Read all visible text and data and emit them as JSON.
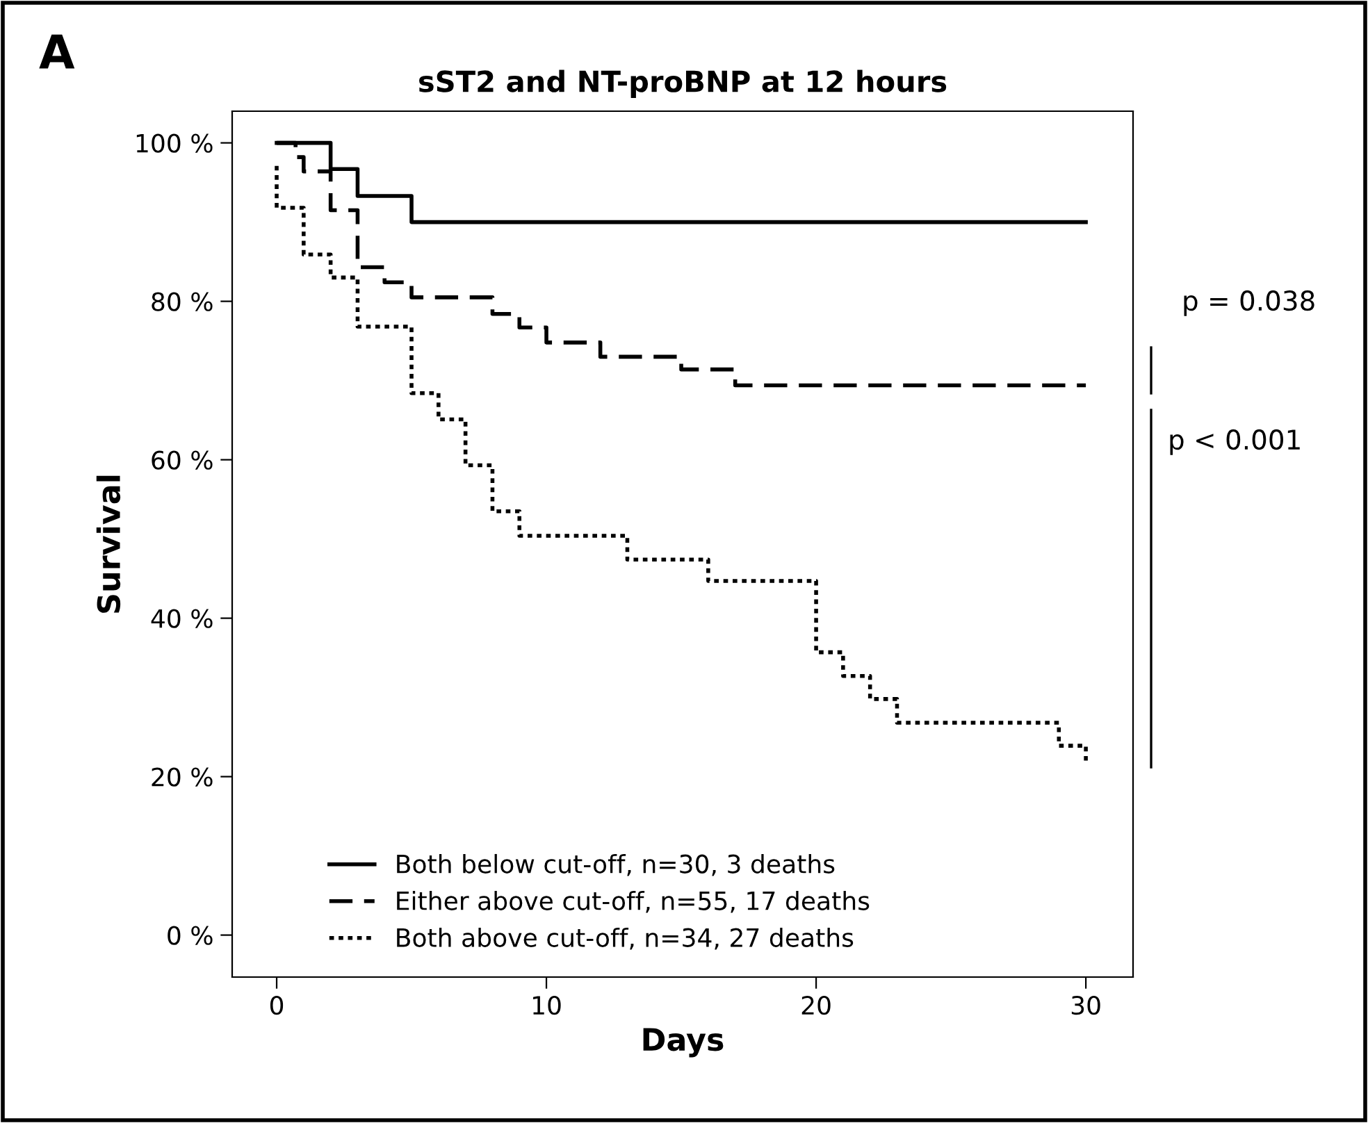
{
  "chart_data": {
    "type": "step",
    "title": "sST2 and NT-proBNP at 12 hours",
    "xlabel": "Days",
    "ylabel": "Survival",
    "series": [
      {
        "name": "Both below cut-off, n=30, 3 deaths",
        "color": "#000000",
        "line_style": "solid",
        "x": [
          0,
          2,
          3,
          5,
          30
        ],
        "values": [
          100,
          96.7,
          93.3,
          90,
          90
        ]
      },
      {
        "name": "Either above cut-off, n=55, 17 deaths",
        "color": "#000000",
        "line_style": "dashed",
        "x": [
          0,
          0.7,
          1,
          2,
          3,
          4,
          5,
          8,
          9,
          10,
          12,
          15,
          17,
          30
        ],
        "values": [
          100,
          98.2,
          96.4,
          91.5,
          84.3,
          82.4,
          80.5,
          78.4,
          76.7,
          74.8,
          73.0,
          71.4,
          69.4,
          69.4
        ]
      },
      {
        "name": "Both above cut-off, n=34, 27 deaths",
        "color": "#000000",
        "line_style": "dotted",
        "x": [
          0,
          0,
          1,
          2,
          3,
          5,
          6,
          7,
          8,
          9,
          13,
          16,
          20,
          21,
          22,
          23,
          29,
          30
        ],
        "values": [
          97.1,
          91.8,
          85.9,
          83.0,
          76.8,
          68.4,
          65.1,
          59.3,
          53.5,
          50.4,
          47.4,
          44.7,
          35.7,
          32.7,
          29.8,
          26.8,
          23.9,
          21.6
        ]
      }
    ],
    "xlim": [
      -1.65,
      31.75
    ],
    "ylim": [
      -5.3,
      104
    ],
    "xticks": [
      0,
      10,
      20,
      30
    ],
    "yticks": [
      {
        "value": 0,
        "label": "0 %"
      },
      {
        "value": 20,
        "label": "20 %"
      },
      {
        "value": 40,
        "label": "40 %"
      },
      {
        "value": 60,
        "label": "60 %"
      },
      {
        "value": 80,
        "label": "80 %"
      },
      {
        "value": 100,
        "label": "100 %"
      }
    ],
    "grid": false,
    "legend": "bottom left",
    "annotations": [
      "A",
      "p = 0.038",
      "p < 0.001"
    ]
  }
}
